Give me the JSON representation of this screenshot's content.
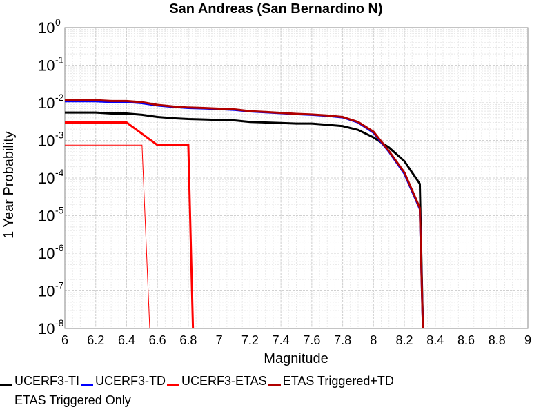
{
  "chart_data": {
    "type": "line",
    "title": "San Andreas (San Bernardino N)",
    "xlabel": "Magnitude",
    "ylabel": "1 Year Probability",
    "x_ticks": [
      "6",
      "6.2",
      "6.4",
      "6.6",
      "6.8",
      "7",
      "7.2",
      "7.4",
      "7.6",
      "7.8",
      "8",
      "8.2",
      "8.4",
      "8.6",
      "8.8",
      "9"
    ],
    "y_ticks": [
      {
        "base": "10",
        "exp": "-8"
      },
      {
        "base": "10",
        "exp": "-7"
      },
      {
        "base": "10",
        "exp": "-6"
      },
      {
        "base": "10",
        "exp": "-5"
      },
      {
        "base": "10",
        "exp": "-4"
      },
      {
        "base": "10",
        "exp": "-3"
      },
      {
        "base": "10",
        "exp": "-2"
      },
      {
        "base": "10",
        "exp": "-1"
      },
      {
        "base": "10",
        "exp": "0"
      }
    ],
    "xlim": [
      6,
      9
    ],
    "ylim": [
      1e-08,
      1
    ],
    "yscale": "log",
    "grid": true,
    "legend_position": "bottom",
    "series": [
      {
        "name": "UCERF3-TI",
        "color": "#000000",
        "width": 3,
        "x": [
          6.0,
          6.1,
          6.2,
          6.3,
          6.4,
          6.5,
          6.6,
          6.7,
          6.8,
          6.9,
          7.0,
          7.1,
          7.2,
          7.3,
          7.4,
          7.5,
          7.6,
          7.7,
          7.8,
          7.9,
          8.0,
          8.1,
          8.2,
          8.3,
          8.32
        ],
        "y": [
          0.0055,
          0.0055,
          0.0055,
          0.0052,
          0.0052,
          0.0048,
          0.0042,
          0.0039,
          0.0037,
          0.0036,
          0.0035,
          0.0034,
          0.0031,
          0.003,
          0.0029,
          0.0028,
          0.0028,
          0.0026,
          0.0024,
          0.0019,
          0.0012,
          0.00065,
          0.00028,
          7e-05,
          1e-08
        ]
      },
      {
        "name": "UCERF3-TD",
        "color": "#0000ff",
        "width": 3,
        "x": [
          6.0,
          6.1,
          6.2,
          6.3,
          6.4,
          6.5,
          6.6,
          6.7,
          6.8,
          6.9,
          7.0,
          7.1,
          7.2,
          7.3,
          7.4,
          7.5,
          7.6,
          7.7,
          7.8,
          7.9,
          8.0,
          8.1,
          8.2,
          8.3,
          8.32
        ],
        "y": [
          0.011,
          0.011,
          0.011,
          0.0105,
          0.0105,
          0.0098,
          0.0085,
          0.0078,
          0.0073,
          0.0071,
          0.0068,
          0.0065,
          0.0059,
          0.0056,
          0.0053,
          0.005,
          0.0048,
          0.0045,
          0.0041,
          0.003,
          0.0016,
          0.0005,
          0.00013,
          1.5e-05,
          1e-08
        ]
      },
      {
        "name": "UCERF3-ETAS",
        "color": "#ff0000",
        "width": 3,
        "x": [
          6.0,
          6.4,
          6.6,
          6.8,
          6.83
        ],
        "y": [
          0.003,
          0.003,
          0.00075,
          0.00075,
          1e-08
        ]
      },
      {
        "name": "ETAS Triggered+TD",
        "color": "#b00000",
        "width": 3,
        "x": [
          6.0,
          6.1,
          6.2,
          6.3,
          6.4,
          6.5,
          6.6,
          6.7,
          6.8,
          6.9,
          7.0,
          7.1,
          7.2,
          7.3,
          7.4,
          7.5,
          7.6,
          7.7,
          7.8,
          7.9,
          8.0,
          8.1,
          8.2,
          8.3,
          8.32
        ],
        "y": [
          0.0118,
          0.0118,
          0.0118,
          0.0112,
          0.0112,
          0.0104,
          0.0088,
          0.008,
          0.0075,
          0.0073,
          0.007,
          0.0067,
          0.006,
          0.0057,
          0.0054,
          0.0051,
          0.0049,
          0.0046,
          0.0042,
          0.0031,
          0.0017,
          0.00052,
          0.00014,
          1.6e-05,
          1e-08
        ]
      },
      {
        "name": "ETAS Triggered Only",
        "color": "#ff0000",
        "width": 1,
        "x": [
          6.0,
          6.5,
          6.55
        ],
        "y": [
          0.00075,
          0.00075,
          1e-08
        ]
      }
    ]
  }
}
